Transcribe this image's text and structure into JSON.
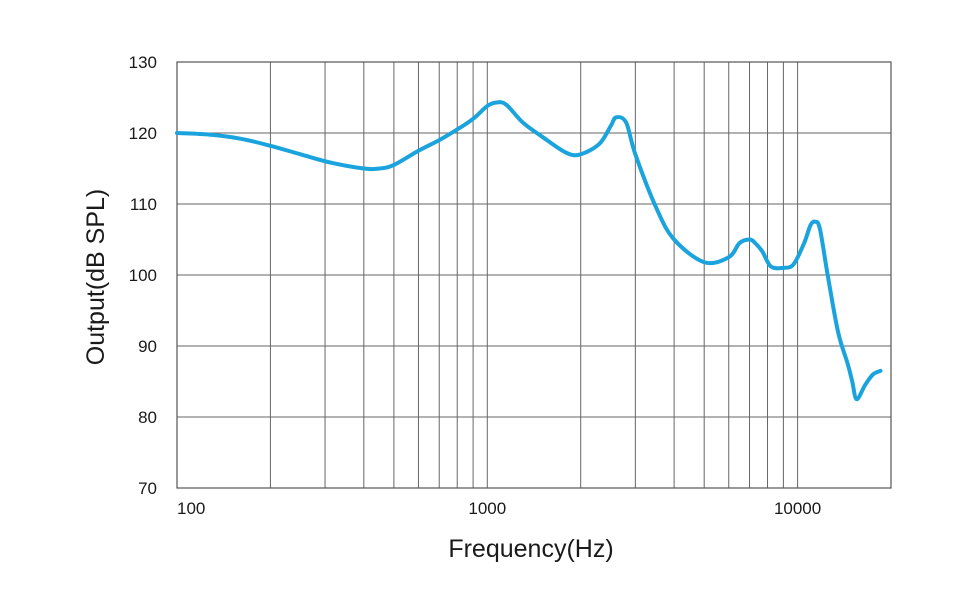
{
  "chart_data": {
    "type": "line",
    "title": "",
    "xlabel": "Frequency(Hz)",
    "ylabel": "Output(dB SPL)",
    "x_scale": "log",
    "xlim": [
      100,
      20000
    ],
    "ylim": [
      70,
      130
    ],
    "x_ticks": [
      100,
      1000,
      10000
    ],
    "x_tick_labels": [
      "100",
      "1000",
      "10000"
    ],
    "y_ticks": [
      70,
      80,
      90,
      100,
      110,
      120,
      130
    ],
    "y_tick_labels": [
      "70",
      "80",
      "90",
      "100",
      "110",
      "120",
      "130"
    ],
    "grid": true,
    "legend": "none",
    "series": [
      {
        "color": "#1aa3dc",
        "x": [
          100,
          125,
          160,
          200,
          250,
          315,
          400,
          450,
          500,
          600,
          700,
          800,
          900,
          1000,
          1070,
          1150,
          1300,
          1500,
          1800,
          2000,
          2300,
          2500,
          2600,
          2800,
          3000,
          3500,
          4000,
          5000,
          6000,
          6500,
          7000,
          7300,
          7700,
          8200,
          9000,
          9700,
          10500,
          11000,
          11400,
          11800,
          12500,
          13500,
          14500,
          15000,
          15500,
          16500,
          17500,
          18500
        ],
        "y": [
          120,
          119.8,
          119.2,
          118.2,
          117,
          115.8,
          115,
          115,
          115.5,
          117.5,
          119,
          120.5,
          122,
          123.8,
          124.3,
          124,
          121.5,
          119.5,
          117.2,
          117,
          118.5,
          121,
          122.2,
          121.5,
          117,
          109.5,
          105,
          101.8,
          102.5,
          104.5,
          105,
          104.5,
          103.3,
          101.2,
          101,
          101.5,
          104.5,
          107,
          107.5,
          106.5,
          100,
          92,
          87.5,
          85,
          82.5,
          84.5,
          86,
          86.5
        ]
      }
    ]
  }
}
